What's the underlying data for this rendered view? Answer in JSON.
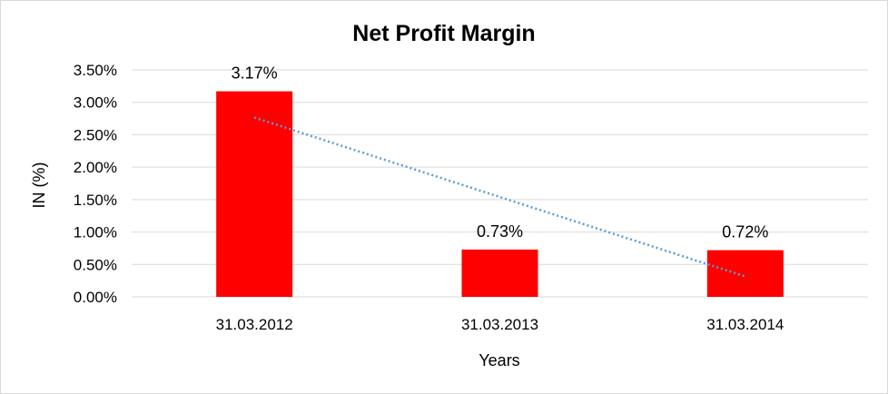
{
  "chart_data": {
    "type": "bar",
    "title": "Net Profit Margin",
    "xlabel": "Years",
    "ylabel": "IN (%)",
    "categories": [
      "31.03.2012",
      "31.03.2013",
      "31.03.2014"
    ],
    "values": [
      3.17,
      0.73,
      0.72
    ],
    "data_labels": [
      "3.17%",
      "0.73%",
      "0.72%"
    ],
    "ylim": [
      0,
      3.5
    ],
    "yticks": [
      0,
      0.5,
      1.0,
      1.5,
      2.0,
      2.5,
      3.0,
      3.5
    ],
    "ytick_labels": [
      "0.00%",
      "0.50%",
      "1.00%",
      "1.50%",
      "2.00%",
      "2.50%",
      "3.00%",
      "3.50%"
    ],
    "grid": true,
    "legend": "none",
    "trendline": {
      "type": "linear",
      "style": "dotted"
    },
    "colors": {
      "bar": "#ff0000",
      "trendline": "#5b9bd5",
      "grid": "#d9d9d9"
    }
  }
}
